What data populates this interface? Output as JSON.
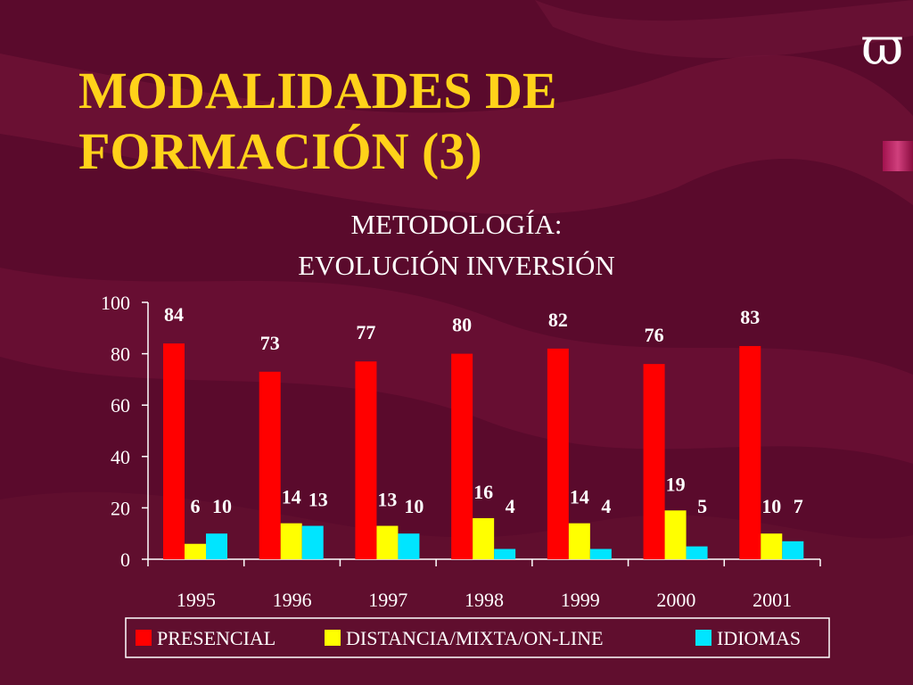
{
  "slide": {
    "title_line1": "MODALIDADES DE",
    "title_line2": "FORMACIÓN (3)",
    "logo_glyph": "ϖ"
  },
  "colors": {
    "background": "#5a0a2c",
    "title": "#ffd21a",
    "presencial": "#ff0000",
    "distancia": "#ffff00",
    "idiomas": "#00e5ff"
  },
  "chart_data": {
    "type": "bar",
    "title_lines": [
      "METODOLOGÍA:",
      "EVOLUCIÓN INVERSIÓN"
    ],
    "categories": [
      "1995",
      "1996",
      "1997",
      "1998",
      "1999",
      "2000",
      "2001"
    ],
    "series": [
      {
        "name": "PRESENCIAL",
        "color": "#ff0000",
        "values": [
          84,
          73,
          77,
          80,
          82,
          76,
          83
        ]
      },
      {
        "name": "DISTANCIA/MIXTA/ON-LINE",
        "color": "#ffff00",
        "values": [
          6,
          14,
          13,
          16,
          14,
          19,
          10
        ]
      },
      {
        "name": "IDIOMAS",
        "color": "#00e5ff",
        "values": [
          10,
          13,
          10,
          4,
          4,
          5,
          7
        ]
      }
    ],
    "ylim": [
      0,
      100
    ],
    "yticks": [
      0,
      20,
      40,
      60,
      80,
      100
    ],
    "xlabel": "",
    "ylabel": "",
    "grid": false,
    "legend_position": "bottom"
  }
}
